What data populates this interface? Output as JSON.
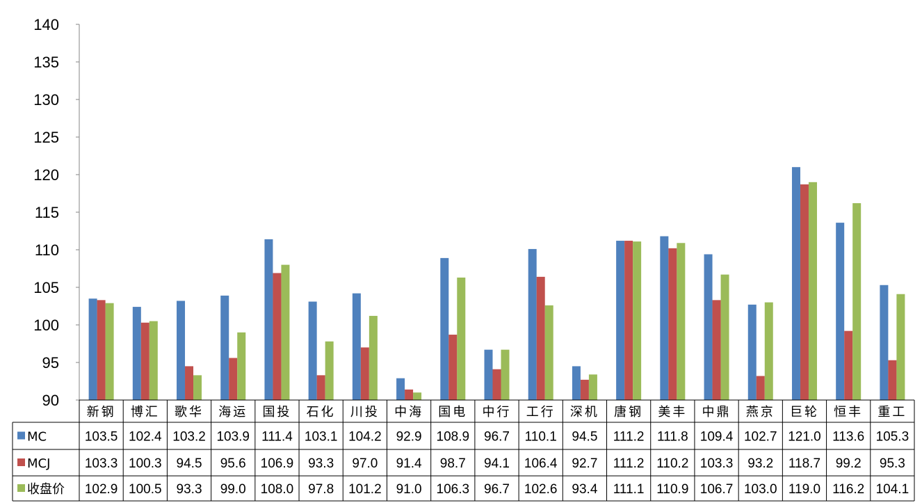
{
  "chart_data": {
    "type": "bar",
    "categories": [
      "新钢",
      "博汇",
      "歌华",
      "海运",
      "国投",
      "石化",
      "川投",
      "中海",
      "国电",
      "中行",
      "工行",
      "深机",
      "唐钢",
      "美丰",
      "中鼎",
      "燕京",
      "巨轮",
      "恒丰",
      "重工"
    ],
    "series": [
      {
        "name": "MC",
        "color": "#4F81BD",
        "values": [
          103.5,
          102.4,
          103.2,
          103.9,
          111.4,
          103.1,
          104.2,
          92.9,
          108.9,
          96.7,
          110.1,
          94.5,
          111.2,
          111.8,
          109.4,
          102.7,
          121.0,
          113.6,
          105.3
        ],
        "labels": [
          "103.5",
          "102.4",
          "103.2",
          "103.9",
          "111.4",
          "103.1",
          "104.2",
          "92.9",
          "108.9",
          "96.7",
          "110.1",
          "94.5",
          "111.2",
          "111.8",
          "109.4",
          "102.7",
          "121.0",
          "113.6",
          "105.3"
        ]
      },
      {
        "name": "MCJ",
        "color": "#C0504D",
        "values": [
          103.3,
          100.3,
          94.5,
          95.6,
          106.9,
          93.3,
          97.0,
          91.4,
          98.7,
          94.1,
          106.4,
          92.7,
          111.2,
          110.2,
          103.3,
          93.2,
          118.7,
          99.2,
          95.3
        ],
        "labels": [
          "103.3",
          "100.3",
          "94.5",
          "95.6",
          "106.9",
          "93.3",
          "97.0",
          "91.4",
          "98.7",
          "94.1",
          "106.4",
          "92.7",
          "111.2",
          "110.2",
          "103.3",
          "93.2",
          "118.7",
          "99.2",
          "95.3"
        ]
      },
      {
        "name": "收盘价",
        "color": "#9BBB59",
        "values": [
          102.9,
          100.5,
          93.3,
          99.0,
          108.0,
          97.8,
          101.2,
          91.0,
          106.3,
          96.7,
          102.6,
          93.4,
          111.1,
          110.9,
          106.7,
          103.0,
          119.0,
          116.2,
          104.1
        ],
        "labels": [
          "102.9",
          "100.5",
          "93.3",
          "99.0",
          "108.0",
          "97.8",
          "101.2",
          "91.0",
          "106.3",
          "96.7",
          "102.6",
          "93.4",
          "111.1",
          "110.9",
          "106.7",
          "103.0",
          "119.0",
          "116.2",
          "104.1"
        ]
      }
    ],
    "yticks": [
      "90",
      "95",
      "100",
      "105",
      "110",
      "115",
      "120",
      "125",
      "130",
      "135",
      "140"
    ],
    "ylim": [
      90,
      140
    ],
    "legend_placement": "data-table-left",
    "grid": false,
    "title": "",
    "xlabel": "",
    "ylabel": ""
  }
}
